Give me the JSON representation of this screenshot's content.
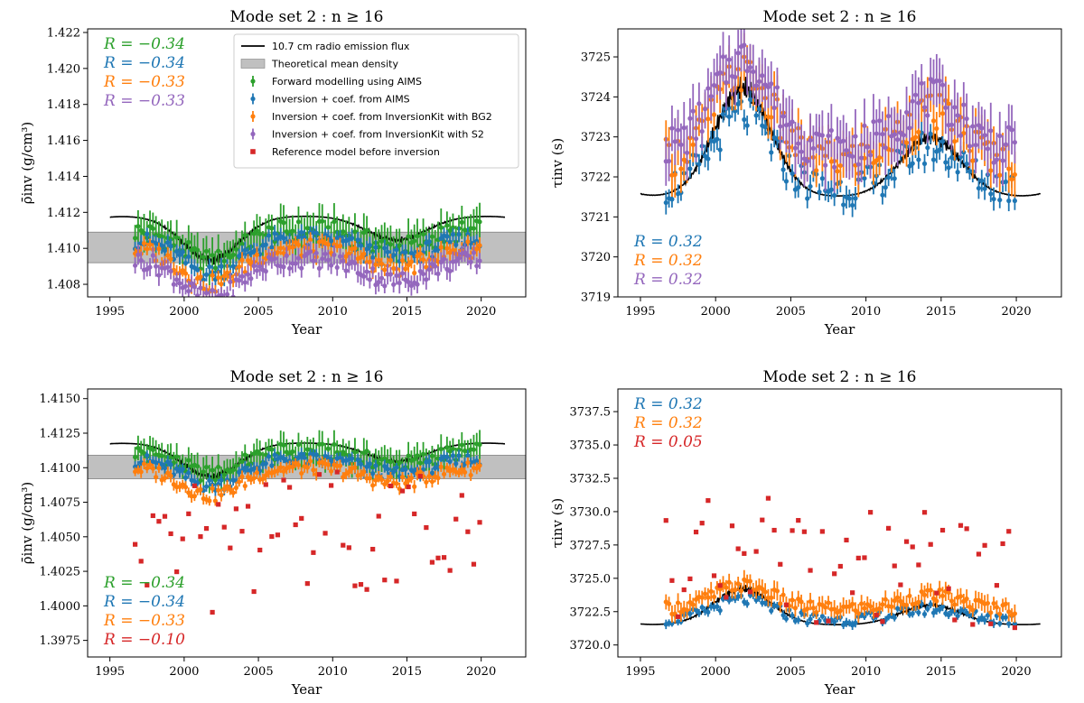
{
  "chart_data": [
    {
      "type": "scatter",
      "title": "Mode set 2 : n ≥ 16",
      "xlabel": "Year",
      "ylabel": "ρ̄inv (g/cm³)",
      "xlim": [
        1993.5,
        2023.0
      ],
      "ylim": [
        1.4073,
        1.4222
      ],
      "xticks": [
        1995,
        2000,
        2005,
        2010,
        2015,
        2020
      ],
      "yticks": [
        1.408,
        1.41,
        1.412,
        1.414,
        1.416,
        1.418,
        1.42,
        1.422
      ],
      "ytick_decimals": 3,
      "band": [
        1.4092,
        1.4109
      ],
      "radio": {
        "base": 1.4118,
        "amp": 0.0027,
        "t0": 1995.0,
        "t1": 2021.6
      },
      "grid": false,
      "legend_position": "upper center",
      "legend": [
        {
          "label": "10.7 cm radio emission flux",
          "kind": "line",
          "color": "#000000"
        },
        {
          "label": "Theoretical mean density",
          "kind": "band",
          "color": "#c0c0c0"
        },
        {
          "label": "Forward modelling using AIMS",
          "kind": "errorbar",
          "color": "#2ca02c"
        },
        {
          "label": "Inversion + coef. from AIMS",
          "kind": "errorbar",
          "color": "#1f77b4"
        },
        {
          "label": "Inversion + coef. from InversionKit with BG2",
          "kind": "errorbar",
          "color": "#ff7f0e"
        },
        {
          "label": "Inversion + coef. from InversionKit with S2",
          "kind": "errorbar",
          "color": "#9467bd"
        },
        {
          "label": "Reference model before inversion",
          "kind": "square",
          "color": "#d62728"
        }
      ],
      "corr_position": "top-left",
      "correlations": [
        {
          "text": "R = −0.34",
          "color": "#2ca02c"
        },
        {
          "text": "R = −0.34",
          "color": "#1f77b4"
        },
        {
          "text": "R = −0.33",
          "color": "#ff7f0e"
        },
        {
          "text": "R = −0.33",
          "color": "#9467bd"
        }
      ],
      "series": [
        {
          "name": "Forward modelling using AIMS",
          "color": "#2ca02c",
          "kind": "errorbar",
          "base": 1.411,
          "amp": 0.0017,
          "err": 0.0009,
          "noise": 0.0006,
          "phase": 1
        },
        {
          "name": "Inversion + coef. from AIMS",
          "color": "#1f77b4",
          "kind": "errorbar",
          "base": 1.4105,
          "amp": 0.0019,
          "err": 0.0004,
          "noise": 0.0005,
          "phase": 2
        },
        {
          "name": "Inversion + coef. from InversionKit with BG2",
          "color": "#ff7f0e",
          "kind": "errorbar",
          "base": 1.41,
          "amp": 0.002,
          "err": 0.0004,
          "noise": 0.0005,
          "phase": 3
        },
        {
          "name": "Inversion + coef. from InversionKit with S2",
          "color": "#9467bd",
          "kind": "errorbar",
          "base": 1.4094,
          "amp": 0.0022,
          "err": 0.0005,
          "noise": 0.0005,
          "phase": 4
        }
      ]
    },
    {
      "type": "scatter",
      "title": "Mode set 2 : n ≥ 16",
      "xlabel": "Year",
      "ylabel": "τinv (s)",
      "xlim": [
        1993.5,
        2023.0
      ],
      "ylim": [
        3719.0,
        3725.7
      ],
      "xticks": [
        1995,
        2000,
        2005,
        2010,
        2015,
        2020
      ],
      "yticks": [
        3719,
        3720,
        3721,
        3722,
        3723,
        3724,
        3725
      ],
      "ytick_decimals": 0,
      "band": null,
      "radio": {
        "base": 3721.5,
        "amp": 3.0,
        "t0": 1995.0,
        "t1": 2021.6
      },
      "grid": false,
      "corr_position": "bottom-left",
      "correlations": [
        {
          "text": "R = 0.32",
          "color": "#1f77b4"
        },
        {
          "text": "R = 0.32",
          "color": "#ff7f0e"
        },
        {
          "text": "R = 0.32",
          "color": "#9467bd"
        }
      ],
      "series": [
        {
          "name": "Inversion + coef. from AIMS",
          "color": "#1f77b4",
          "kind": "errorbar",
          "base": 3721.7,
          "amp": 1.9,
          "err": 0.25,
          "noise": 0.45,
          "phase": 5
        },
        {
          "name": "Inversion + coef. from InversionKit with BG2",
          "color": "#ff7f0e",
          "kind": "errorbar",
          "base": 3722.4,
          "amp": 2.2,
          "err": 0.5,
          "noise": 0.5,
          "phase": 6
        },
        {
          "name": "Inversion + coef. from InversionKit with S2",
          "color": "#9467bd",
          "kind": "errorbar",
          "base": 3722.7,
          "amp": 2.3,
          "err": 0.6,
          "noise": 0.5,
          "phase": 7
        }
      ]
    },
    {
      "type": "scatter",
      "title": "Mode set 2 : n ≥ 16",
      "xlabel": "Year",
      "ylabel": "ρ̄inv (g/cm³)",
      "xlim": [
        1993.5,
        2023.0
      ],
      "ylim": [
        1.3963,
        1.4157
      ],
      "xticks": [
        1995,
        2000,
        2005,
        2010,
        2015,
        2020
      ],
      "yticks": [
        1.3975,
        1.4,
        1.4025,
        1.405,
        1.4075,
        1.41,
        1.4125,
        1.415
      ],
      "ytick_decimals": 4,
      "band": [
        1.4092,
        1.4109
      ],
      "radio": {
        "base": 1.4118,
        "amp": 0.0027,
        "t0": 1995.0,
        "t1": 2021.6
      },
      "grid": false,
      "corr_position": "bottom-left",
      "correlations": [
        {
          "text": "R = −0.34",
          "color": "#2ca02c"
        },
        {
          "text": "R = −0.34",
          "color": "#1f77b4"
        },
        {
          "text": "R = −0.33",
          "color": "#ff7f0e"
        },
        {
          "text": "R = −0.10",
          "color": "#d62728"
        }
      ],
      "series": [
        {
          "name": "Forward modelling using AIMS",
          "color": "#2ca02c",
          "kind": "errorbar",
          "base": 1.4112,
          "amp": 0.0017,
          "err": 0.0009,
          "noise": 0.0006,
          "phase": 1
        },
        {
          "name": "Inversion + coef. from AIMS",
          "color": "#1f77b4",
          "kind": "errorbar",
          "base": 1.4106,
          "amp": 0.0019,
          "err": 0.0004,
          "noise": 0.0005,
          "phase": 2
        },
        {
          "name": "Inversion + coef. from InversionKit with BG2",
          "color": "#ff7f0e",
          "kind": "errorbar",
          "base": 1.41,
          "amp": 0.002,
          "err": 0.0004,
          "noise": 0.0005,
          "phase": 3
        },
        {
          "name": "Reference model before inversion",
          "color": "#d62728",
          "kind": "square",
          "base": 1.406,
          "amp": 0.002,
          "err": 0,
          "noise": 0.0045,
          "phase": 8
        }
      ]
    },
    {
      "type": "scatter",
      "title": "Mode set 2 : n ≥ 16",
      "xlabel": "Year",
      "ylabel": "τinv (s)",
      "xlim": [
        1993.5,
        2023.0
      ],
      "ylim": [
        3719.1,
        3739.2
      ],
      "xticks": [
        1995,
        2000,
        2005,
        2010,
        2015,
        2020
      ],
      "yticks": [
        3720.0,
        3722.5,
        3725.0,
        3727.5,
        3730.0,
        3732.5,
        3735.0,
        3737.5
      ],
      "ytick_decimals": 1,
      "band": null,
      "radio": {
        "base": 3721.5,
        "amp": 3.0,
        "t0": 1995.0,
        "t1": 2021.6
      },
      "grid": false,
      "corr_position": "top-left",
      "correlations": [
        {
          "text": "R = 0.32",
          "color": "#1f77b4"
        },
        {
          "text": "R = 0.32",
          "color": "#ff7f0e"
        },
        {
          "text": "R = 0.05",
          "color": "#d62728"
        }
      ],
      "series": [
        {
          "name": "Inversion + coef. from AIMS",
          "color": "#1f77b4",
          "kind": "errorbar",
          "base": 3721.9,
          "amp": 1.5,
          "err": 0.3,
          "noise": 0.45,
          "phase": 5
        },
        {
          "name": "Inversion + coef. from InversionKit with BG2",
          "color": "#ff7f0e",
          "kind": "errorbar",
          "base": 3722.7,
          "amp": 1.8,
          "err": 0.6,
          "noise": 0.5,
          "phase": 6
        },
        {
          "name": "Reference model before inversion",
          "color": "#d62728",
          "kind": "square",
          "base": 3725.5,
          "amp": 2.0,
          "err": 0,
          "noise": 4.5,
          "phase": 9
        }
      ]
    }
  ]
}
